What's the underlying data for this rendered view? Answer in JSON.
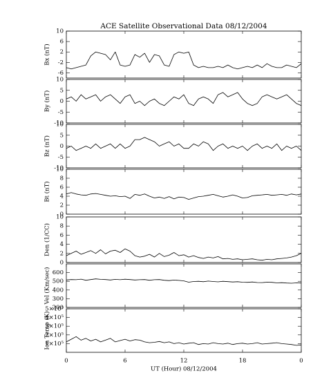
{
  "chart_data": [
    {
      "type": "line",
      "title": "ACE Satellite Observational Data   08/12/2004",
      "ylabel": "Bx (nT)",
      "x": [
        0,
        0.5,
        1,
        1.5,
        2,
        2.5,
        3,
        3.5,
        4,
        4.5,
        5,
        5.5,
        6,
        6.5,
        7,
        7.5,
        8,
        8.5,
        9,
        9.5,
        10,
        10.5,
        11,
        11.5,
        12,
        12.5,
        13,
        13.5,
        14,
        14.5,
        15,
        15.5,
        16,
        16.5,
        17,
        17.5,
        18,
        18.5,
        19,
        19.5,
        20,
        20.5,
        21,
        21.5,
        22,
        22.5,
        23,
        23.5,
        24
      ],
      "values": [
        -4,
        -4.5,
        -4,
        -3.5,
        -3,
        0.5,
        2,
        1.5,
        1,
        -1,
        2,
        -3,
        -3.5,
        -3,
        1,
        0,
        1.5,
        -2,
        1,
        0.5,
        -3,
        -3.5,
        1,
        2,
        1.5,
        2,
        -3,
        -4,
        -3.5,
        -4,
        -4,
        -3.5,
        -4,
        -3,
        -4,
        -4.5,
        -4,
        -3.5,
        -4,
        -3,
        -4,
        -2.5,
        -3.5,
        -4,
        -4,
        -3,
        -3.5,
        -4,
        -2.5
      ],
      "ylim": [
        -8,
        10
      ],
      "yticks": [
        -6,
        -2,
        2,
        6,
        10
      ]
    },
    {
      "type": "line",
      "ylabel": "By (nT)",
      "x": [
        0,
        0.5,
        1,
        1.5,
        2,
        2.5,
        3,
        3.5,
        4,
        4.5,
        5,
        5.5,
        6,
        6.5,
        7,
        7.5,
        8,
        8.5,
        9,
        9.5,
        10,
        10.5,
        11,
        11.5,
        12,
        12.5,
        13,
        13.5,
        14,
        14.5,
        15,
        15.5,
        16,
        16.5,
        17,
        17.5,
        18,
        18.5,
        19,
        19.5,
        20,
        20.5,
        21,
        21.5,
        22,
        22.5,
        23,
        23.5,
        24
      ],
      "values": [
        1,
        2,
        0,
        3,
        1,
        2,
        3,
        0,
        2,
        3,
        1,
        -1,
        2,
        3,
        -1,
        0,
        -2,
        0,
        1,
        -1,
        -2,
        0,
        2,
        1,
        3,
        -1,
        -2,
        1,
        2,
        1,
        -1,
        3,
        4,
        2,
        3,
        4,
        1,
        -1,
        -2,
        -1,
        2,
        3,
        2,
        1,
        2,
        3,
        1,
        -1,
        -2
      ],
      "ylim": [
        -10,
        10
      ],
      "yticks": [
        -10,
        -5,
        0,
        5,
        10
      ]
    },
    {
      "type": "line",
      "ylabel": "Bz (nT)",
      "x": [
        0,
        0.5,
        1,
        1.5,
        2,
        2.5,
        3,
        3.5,
        4,
        4.5,
        5,
        5.5,
        6,
        6.5,
        7,
        7.5,
        8,
        8.5,
        9,
        9.5,
        10,
        10.5,
        11,
        11.5,
        12,
        12.5,
        13,
        13.5,
        14,
        14.5,
        15,
        15.5,
        16,
        16.5,
        17,
        17.5,
        18,
        18.5,
        19,
        19.5,
        20,
        20.5,
        21,
        21.5,
        22,
        22.5,
        23,
        23.5,
        24
      ],
      "values": [
        -1,
        0,
        -2,
        -1,
        0,
        -1,
        1,
        -1,
        0,
        1,
        -1,
        1,
        -1,
        0,
        3,
        3,
        4,
        3,
        2,
        0,
        1,
        2,
        0,
        1,
        -1,
        -1,
        1,
        0,
        2,
        1,
        -2,
        0,
        1,
        -1,
        0,
        -1,
        0,
        -2,
        0,
        1,
        -1,
        0,
        -1,
        1,
        -2,
        0,
        -1,
        0,
        -2
      ],
      "ylim": [
        -10,
        10
      ],
      "yticks": [
        -10,
        -5,
        0,
        5,
        10
      ]
    },
    {
      "type": "line",
      "ylabel": "Bt (nT)",
      "x": [
        0,
        0.5,
        1,
        1.5,
        2,
        2.5,
        3,
        3.5,
        4,
        4.5,
        5,
        5.5,
        6,
        6.5,
        7,
        7.5,
        8,
        8.5,
        9,
        9.5,
        10,
        10.5,
        11,
        11.5,
        12,
        12.5,
        13,
        13.5,
        14,
        14.5,
        15,
        15.5,
        16,
        16.5,
        17,
        17.5,
        18,
        18.5,
        19,
        19.5,
        20,
        20.5,
        21,
        21.5,
        22,
        22.5,
        23,
        23.5,
        24
      ],
      "values": [
        4.5,
        4.8,
        4.5,
        4.3,
        4.2,
        4.5,
        4.6,
        4.4,
        4.2,
        4,
        4.1,
        3.9,
        4,
        3.5,
        4.4,
        4.2,
        4.5,
        4,
        3.6,
        3.8,
        3.5,
        3.9,
        3.4,
        3.8,
        3.7,
        3.3,
        3.6,
        3.9,
        4,
        4.2,
        4.4,
        4.1,
        3.8,
        4,
        4.3,
        4,
        3.6,
        3.7,
        4.1,
        4.2,
        4.3,
        4.4,
        4.2,
        4.3,
        4.4,
        4.2,
        4.5,
        4.3,
        4.5
      ],
      "ylim": [
        0,
        10
      ],
      "yticks": [
        0,
        2,
        4,
        6,
        8,
        10
      ]
    },
    {
      "type": "line",
      "ylabel": "Den (1/CC)",
      "x": [
        0,
        0.5,
        1,
        1.5,
        2,
        2.5,
        3,
        3.5,
        4,
        4.5,
        5,
        5.5,
        6,
        6.5,
        7,
        7.5,
        8,
        8.5,
        9,
        9.5,
        10,
        10.5,
        11,
        11.5,
        12,
        12.5,
        13,
        13.5,
        14,
        14.5,
        15,
        15.5,
        16,
        16.5,
        17,
        17.5,
        18,
        18.5,
        19,
        19.5,
        20,
        20.5,
        21,
        21.5,
        22,
        22.5,
        23,
        23.5,
        24
      ],
      "values": [
        1.5,
        2,
        2.5,
        1.8,
        2.2,
        2.6,
        2,
        2.8,
        1.9,
        2.5,
        2.7,
        2.2,
        3,
        2.5,
        1.5,
        1.2,
        1.4,
        1.8,
        1.2,
        2,
        1.3,
        1.6,
        2.2,
        1.5,
        1.7,
        1.2,
        1.5,
        1.1,
        0.9,
        1.2,
        1,
        1.3,
        0.8,
        0.9,
        0.7,
        0.8,
        0.6,
        0.7,
        0.8,
        0.6,
        0.5,
        0.7,
        0.6,
        0.8,
        0.9,
        1,
        1.2,
        1.5,
        2
      ],
      "ylim": [
        0,
        10
      ],
      "yticks": [
        0,
        2,
        4,
        6,
        8,
        10
      ]
    },
    {
      "type": "line",
      "ylabel": "Vel (Km/sec)",
      "x": [
        0,
        0.5,
        1,
        1.5,
        2,
        2.5,
        3,
        3.5,
        4,
        4.5,
        5,
        5.5,
        6,
        6.5,
        7,
        7.5,
        8,
        8.5,
        9,
        9.5,
        10,
        10.5,
        11,
        11.5,
        12,
        12.5,
        13,
        13.5,
        14,
        14.5,
        15,
        15.5,
        16,
        16.5,
        17,
        17.5,
        18,
        18.5,
        19,
        19.5,
        20,
        20.5,
        21,
        21.5,
        22,
        22.5,
        23,
        23.5,
        24
      ],
      "values": [
        515,
        520,
        518,
        525,
        512,
        520,
        528,
        522,
        520,
        515,
        522,
        518,
        524,
        520,
        515,
        518,
        520,
        512,
        518,
        520,
        512,
        508,
        514,
        510,
        505,
        490,
        498,
        500,
        495,
        502,
        498,
        494,
        500,
        496,
        492,
        495,
        490,
        488,
        492,
        486,
        485,
        490,
        488,
        482,
        484,
        480,
        478,
        482,
        480
      ],
      "ylim": [
        200,
        700
      ],
      "yticks": [
        200,
        300,
        400,
        500,
        600
      ]
    },
    {
      "type": "line",
      "ylabel": "Ion Temp (K)",
      "x": [
        0,
        0.5,
        1,
        1.5,
        2,
        2.5,
        3,
        3.5,
        4,
        4.5,
        5,
        5.5,
        6,
        6.5,
        7,
        7.5,
        8,
        8.5,
        9,
        9.5,
        10,
        10.5,
        11,
        11.5,
        12,
        12.5,
        13,
        13.5,
        14,
        14.5,
        15,
        15.5,
        16,
        16.5,
        17,
        17.5,
        18,
        18.5,
        19,
        19.5,
        20,
        20.5,
        21,
        21.5,
        22,
        22.5,
        23,
        23.5,
        24
      ],
      "values": [
        120000,
        150000,
        180000,
        140000,
        160000,
        130000,
        150000,
        120000,
        140000,
        160000,
        120000,
        135000,
        150000,
        130000,
        145000,
        140000,
        120000,
        110000,
        115000,
        125000,
        110000,
        120000,
        100000,
        110000,
        95000,
        105000,
        110000,
        90000,
        100000,
        95000,
        110000,
        100000,
        95000,
        105000,
        90000,
        100000,
        105000,
        95000,
        100000,
        110000,
        95000,
        100000,
        105000,
        110000,
        100000,
        95000,
        90000,
        80000,
        85000
      ],
      "ylim": [
        0,
        500000
      ],
      "yticks": [
        {
          "value": 100000,
          "label": "1×10⁵"
        },
        {
          "value": 200000,
          "label": "2×10⁵"
        },
        {
          "value": 300000,
          "label": "3×10⁵"
        },
        {
          "value": 400000,
          "label": "4×10⁵"
        },
        {
          "value": 500000,
          "label": "5×10⁵"
        }
      ],
      "xlabel": "UT (Hour)   08/12/2004",
      "xlim": [
        0,
        24
      ],
      "xticks": [
        0,
        6,
        12,
        18,
        {
          "value": 24,
          "label": "0"
        }
      ]
    }
  ]
}
